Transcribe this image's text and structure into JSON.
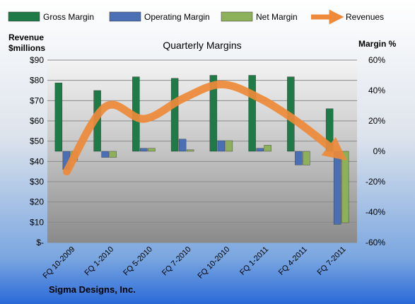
{
  "chart_data": {
    "type": "bar",
    "title": "Quarterly Margins",
    "company": "Sigma Designs, Inc.",
    "legend_position": "top",
    "grid": true,
    "categories": [
      "FQ 10-2009",
      "FQ 1-2010",
      "FQ 5-2010",
      "FQ 7-2010",
      "FQ 10-2010",
      "FQ 1-2011",
      "FQ 4-2011",
      "FQ 7-2011"
    ],
    "left_axis": {
      "label_line1": "Revenue",
      "label_line2": "$millions",
      "range": [
        0,
        90
      ],
      "ticks": [
        "$-",
        "$10",
        "$20",
        "$30",
        "$40",
        "$50",
        "$60",
        "$70",
        "$80",
        "$90"
      ]
    },
    "right_axis": {
      "label": "Margin %",
      "range": [
        -60,
        60
      ],
      "ticks": [
        "-60%",
        "-40%",
        "-20%",
        "0%",
        "20%",
        "40%",
        "60%"
      ]
    },
    "series": [
      {
        "name": "Gross Margin",
        "axis": "right",
        "kind": "bar",
        "color": "#1e7a46",
        "values": [
          45,
          40,
          49,
          48,
          50,
          50,
          49,
          28
        ]
      },
      {
        "name": "Operating Margin",
        "axis": "right",
        "kind": "bar",
        "color": "#4a6fb5",
        "values": [
          -12,
          -4,
          2,
          8,
          7,
          2,
          -9,
          -48
        ]
      },
      {
        "name": "Net Margin",
        "axis": "right",
        "kind": "bar",
        "color": "#8db05a",
        "values": [
          -6,
          -4,
          2,
          1,
          7,
          4,
          -9,
          -47
        ]
      },
      {
        "name": "Revenues",
        "axis": "left",
        "kind": "line",
        "color": "#ee8a3a",
        "values": [
          35,
          67,
          61,
          71,
          78,
          71,
          59,
          44
        ]
      }
    ]
  }
}
